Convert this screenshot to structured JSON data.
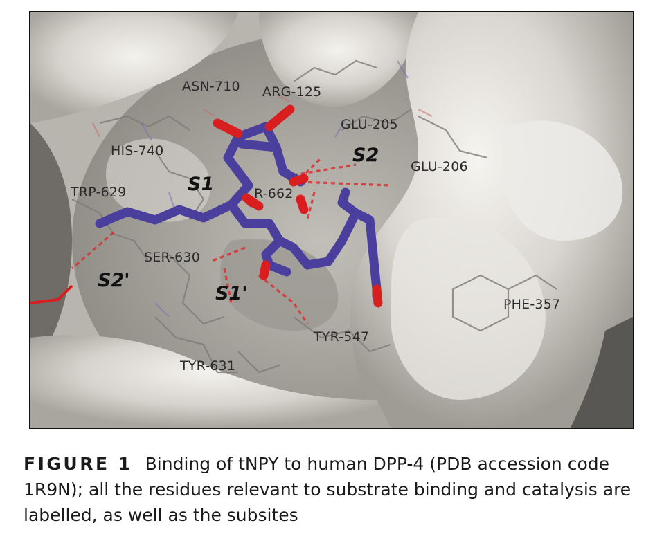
{
  "figure": {
    "labels": {
      "asn710": "ASN-710",
      "arg125": "ARG-125",
      "glu205": "GLU-205",
      "his740": "HIS-740",
      "glu206": "GLU-206",
      "trp629": "TRP-629",
      "tyr662": "R-662",
      "ser630": "SER-630",
      "phe357": "PHE-357",
      "tyr547": "TYR-547",
      "tyr631": "TYR-631"
    },
    "subsites": {
      "s1": "S1",
      "s2": "S2",
      "s1p": "S1'",
      "s2p": "S2'"
    },
    "colors": {
      "ligand": "#4b3f9e",
      "oxygen": "#d81e1e",
      "surface": "#c9c6c0",
      "hbond": "#d83030"
    }
  },
  "caption": {
    "number": "FIGURE 1",
    "text": "Binding of tNPY to human DPP-4 (PDB accession code 1R9N); all the residues relevant to substrate binding and catalysis are labelled, as well as the subsites"
  }
}
